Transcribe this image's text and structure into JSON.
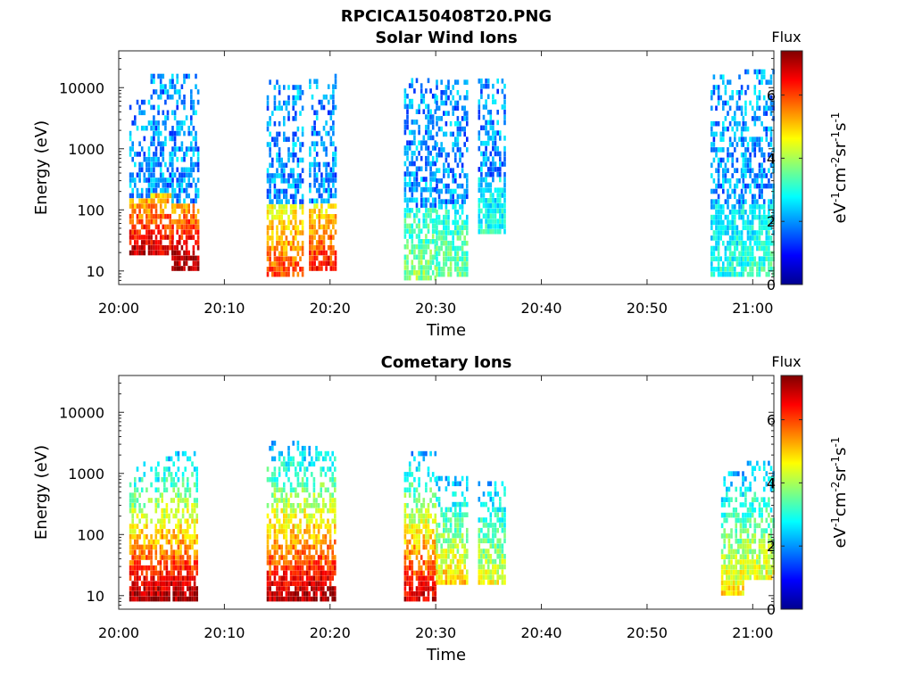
{
  "figure_title": "RPCICA150408T20.PNG",
  "chart_data": [
    {
      "type": "heatmap",
      "title": "Solar Wind Ions",
      "xlabel": "Time",
      "ylabel": "Energy (eV)",
      "x_range": [
        "20:00",
        "21:02"
      ],
      "x_ticks": [
        "20:00",
        "20:10",
        "20:20",
        "20:30",
        "20:40",
        "20:50",
        "21:00"
      ],
      "y_scale": "log",
      "y_range": [
        6,
        40000
      ],
      "y_ticks": [
        10,
        100,
        1000,
        10000
      ],
      "y_tick_labels": [
        "10",
        "100",
        "1000",
        "10000"
      ],
      "colorbar": {
        "label": "Flux",
        "unit": "eV-1cm-2sr-1s-1",
        "range": [
          0,
          7.4
        ],
        "ticks": [
          0,
          2,
          4,
          6
        ],
        "colormap": "jet"
      },
      "grid": false,
      "bursts": [
        {
          "start": "20:01",
          "end": "20:03",
          "low_energy": 18,
          "high_energy": 6000,
          "peak_flux": 7.0
        },
        {
          "start": "20:03",
          "end": "20:05",
          "low_energy": 18,
          "high_energy": 14000,
          "peak_flux": 6.8
        },
        {
          "start": "20:05",
          "end": "20:07.5",
          "low_energy": 10,
          "high_energy": 14000,
          "peak_flux": 7.2
        },
        {
          "start": "20:14",
          "end": "20:17.5",
          "low_energy": 8,
          "high_energy": 12000,
          "peak_flux": 6.0
        },
        {
          "start": "20:18",
          "end": "20:20.5",
          "low_energy": 10,
          "high_energy": 14000,
          "peak_flux": 6.4
        },
        {
          "start": "20:27",
          "end": "20:30",
          "low_energy": 7,
          "high_energy": 13000,
          "peak_flux": 3.8
        },
        {
          "start": "20:30",
          "end": "20:33",
          "low_energy": 8,
          "high_energy": 13000,
          "peak_flux": 3.6
        },
        {
          "start": "20:34",
          "end": "20:36.5",
          "low_energy": 40,
          "high_energy": 14000,
          "peak_flux": 3.0
        },
        {
          "start": "20:56",
          "end": "20:59",
          "low_energy": 8,
          "high_energy": 15000,
          "peak_flux": 3.0
        },
        {
          "start": "20:59",
          "end": "21:02",
          "low_energy": 8,
          "high_energy": 20000,
          "peak_flux": 3.2
        }
      ]
    },
    {
      "type": "heatmap",
      "title": "Cometary Ions",
      "xlabel": "Time",
      "ylabel": "Energy (eV)",
      "x_range": [
        "20:00",
        "21:02"
      ],
      "x_ticks": [
        "20:00",
        "20:10",
        "20:20",
        "20:30",
        "20:40",
        "20:50",
        "21:00"
      ],
      "y_scale": "log",
      "y_range": [
        6,
        40000
      ],
      "y_ticks": [
        10,
        100,
        1000,
        10000
      ],
      "y_tick_labels": [
        "10",
        "100",
        "1000",
        "10000"
      ],
      "colorbar": {
        "label": "Flux",
        "unit": "eV-1cm-2sr-1s-1",
        "range": [
          0,
          7.4
        ],
        "ticks": [
          0,
          2,
          4,
          6
        ],
        "colormap": "jet"
      },
      "grid": false,
      "bursts": [
        {
          "start": "20:01",
          "end": "20:04",
          "low_energy": 8,
          "high_energy": 1500,
          "peak_flux": 7.2
        },
        {
          "start": "20:04",
          "end": "20:07.5",
          "low_energy": 8,
          "high_energy": 2000,
          "peak_flux": 7.2
        },
        {
          "start": "20:14",
          "end": "20:17.5",
          "low_energy": 8,
          "high_energy": 3000,
          "peak_flux": 7.0
        },
        {
          "start": "20:17.5",
          "end": "20:20.5",
          "low_energy": 8,
          "high_energy": 2800,
          "peak_flux": 7.2
        },
        {
          "start": "20:27",
          "end": "20:30",
          "low_energy": 8,
          "high_energy": 2000,
          "peak_flux": 6.8
        },
        {
          "start": "20:30",
          "end": "20:33",
          "low_energy": 15,
          "high_energy": 800,
          "peak_flux": 5.0
        },
        {
          "start": "20:34",
          "end": "20:36.5",
          "low_energy": 15,
          "high_energy": 700,
          "peak_flux": 4.5
        },
        {
          "start": "20:57",
          "end": "20:59",
          "low_energy": 10,
          "high_energy": 1000,
          "peak_flux": 4.8
        },
        {
          "start": "20:59",
          "end": "21:02",
          "low_energy": 18,
          "high_energy": 1500,
          "peak_flux": 4.5
        }
      ]
    }
  ]
}
